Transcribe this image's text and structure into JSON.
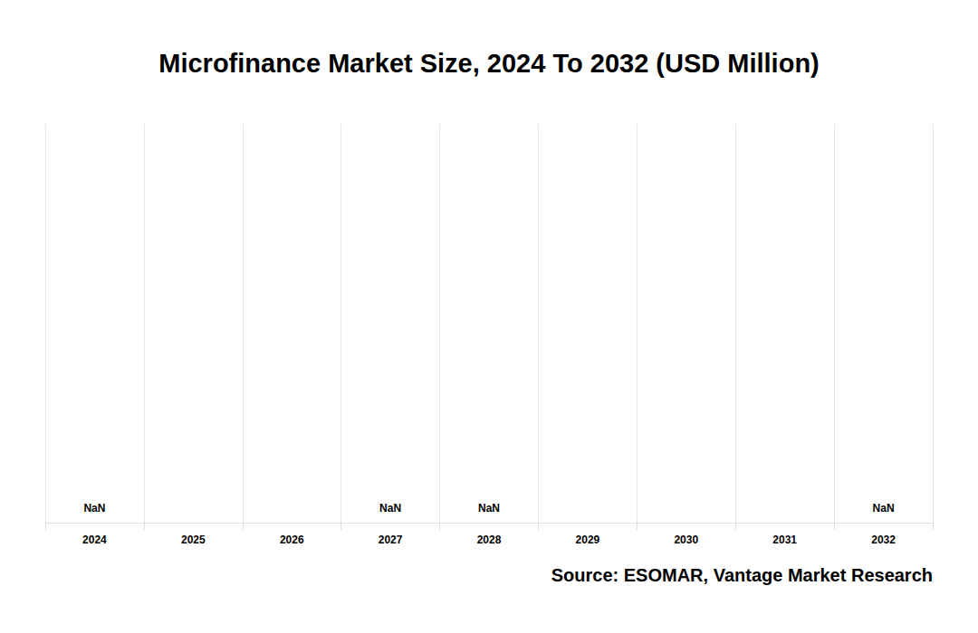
{
  "chart_data": {
    "type": "bar",
    "title": "Microfinance Market Size, 2024 To 2032 (USD Million)",
    "source": "Source: ESOMAR, Vantage Market Research",
    "categories": [
      "2024",
      "2025",
      "2026",
      "2027",
      "2028",
      "2029",
      "2030",
      "2031",
      "2032"
    ],
    "values": [
      null,
      null,
      null,
      null,
      null,
      null,
      null,
      null,
      null
    ],
    "value_labels": [
      "NaN",
      null,
      null,
      "NaN",
      "NaN",
      null,
      null,
      null,
      "NaN"
    ],
    "data_labels": true,
    "grid": true,
    "tick_labels": "x"
  }
}
